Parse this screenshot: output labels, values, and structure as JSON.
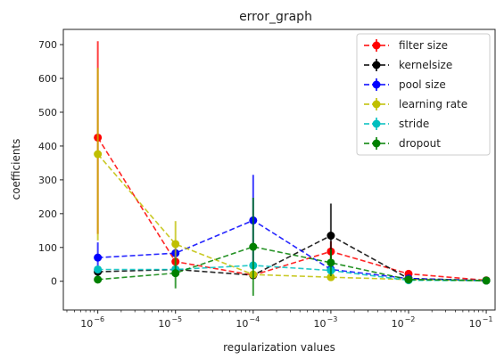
{
  "chart_data": {
    "type": "line",
    "title": "error_graph",
    "xlabel": "regularization values",
    "ylabel": "coefficients",
    "x_scale": "log",
    "x": [
      1e-06,
      1e-05,
      0.0001,
      0.001,
      0.01,
      0.1
    ],
    "x_tick_labels": [
      {
        "base": "10",
        "exp": "−6"
      },
      {
        "base": "10",
        "exp": "−5"
      },
      {
        "base": "10",
        "exp": "−4"
      },
      {
        "base": "10",
        "exp": "−3"
      },
      {
        "base": "10",
        "exp": "−2"
      },
      {
        "base": "10",
        "exp": "−1"
      }
    ],
    "y_ticks": [
      0,
      100,
      200,
      300,
      400,
      500,
      600,
      700
    ],
    "ylim": [
      -85,
      745
    ],
    "grid": false,
    "legend_position": "top-right",
    "series": [
      {
        "name": "filter size",
        "color": "#ff0000",
        "values": [
          425,
          58,
          18,
          88,
          22,
          3
        ],
        "errors": [
          285,
          25,
          10,
          30,
          8,
          2
        ]
      },
      {
        "name": "kernelsize",
        "color": "#000000",
        "values": [
          28,
          35,
          18,
          135,
          8,
          2
        ],
        "errors": [
          8,
          8,
          8,
          95,
          4,
          2
        ]
      },
      {
        "name": "pool size",
        "color": "#0000ff",
        "values": [
          70,
          83,
          180,
          35,
          8,
          2
        ],
        "errors": [
          45,
          15,
          135,
          15,
          4,
          2
        ]
      },
      {
        "name": "learning rate",
        "color": "#bfbf00",
        "values": [
          376,
          110,
          20,
          12,
          5,
          2
        ],
        "errors": [
          255,
          68,
          8,
          8,
          3,
          2
        ]
      },
      {
        "name": "stride",
        "color": "#00bfbf",
        "values": [
          35,
          35,
          47,
          32,
          3,
          2
        ],
        "errors": [
          8,
          8,
          10,
          8,
          2,
          2
        ]
      },
      {
        "name": "dropout",
        "color": "#008000",
        "values": [
          5,
          24,
          102,
          55,
          5,
          2
        ],
        "errors": [
          3,
          45,
          145,
          40,
          4,
          2
        ]
      }
    ]
  }
}
